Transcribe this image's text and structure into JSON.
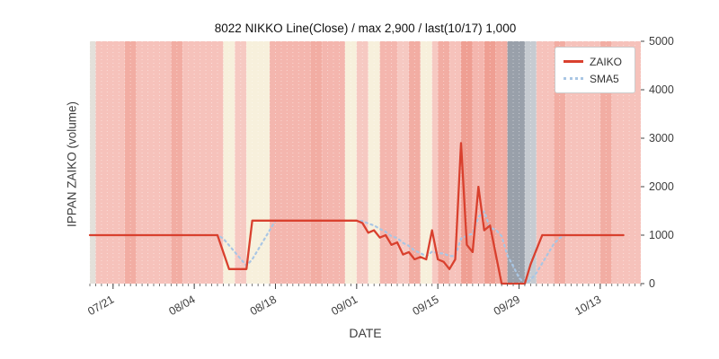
{
  "page": {
    "background": "#ffffff"
  },
  "chart_data": {
    "type": "line",
    "title": "8022 NIKKO Line(Close) / max 2,900 / last(10/17) 1,000",
    "xlabel": "DATE",
    "ylabel": "IPPAN ZAIKO (volume)",
    "ylim": [
      0,
      5000
    ],
    "yticks": [
      0,
      1000,
      2000,
      3000,
      4000,
      5000
    ],
    "x_domain_days": 95,
    "xticks": [
      {
        "d": 4,
        "label": "07/21"
      },
      {
        "d": 18,
        "label": "08/04"
      },
      {
        "d": 32,
        "label": "08/18"
      },
      {
        "d": 46,
        "label": "09/01"
      },
      {
        "d": 60,
        "label": "09/15"
      },
      {
        "d": 74,
        "label": "09/29"
      },
      {
        "d": 88,
        "label": "10/13"
      }
    ],
    "legend": {
      "position": "top-right",
      "entries": [
        {
          "label": "ZAIKO",
          "color": "#d9402e",
          "style": "solid"
        },
        {
          "label": "SMA5",
          "color": "#a9c6e4",
          "style": "dotted"
        }
      ]
    },
    "series": [
      {
        "name": "ZAIKO",
        "color": "#d9402e",
        "style": "solid",
        "points": [
          [
            0,
            1000
          ],
          [
            22,
            1000
          ],
          [
            24,
            300
          ],
          [
            27,
            300
          ],
          [
            28,
            1300
          ],
          [
            46,
            1300
          ],
          [
            47,
            1250
          ],
          [
            48,
            1050
          ],
          [
            49,
            1100
          ],
          [
            50,
            950
          ],
          [
            51,
            1000
          ],
          [
            52,
            800
          ],
          [
            53,
            850
          ],
          [
            54,
            600
          ],
          [
            55,
            650
          ],
          [
            56,
            500
          ],
          [
            57,
            550
          ],
          [
            58,
            500
          ],
          [
            59,
            1100
          ],
          [
            60,
            500
          ],
          [
            61,
            450
          ],
          [
            62,
            300
          ],
          [
            63,
            500
          ],
          [
            64,
            2900
          ],
          [
            65,
            800
          ],
          [
            66,
            650
          ],
          [
            67,
            2000
          ],
          [
            68,
            1100
          ],
          [
            69,
            1200
          ],
          [
            70,
            600
          ],
          [
            71,
            0
          ],
          [
            75,
            0
          ],
          [
            76,
            400
          ],
          [
            78,
            1000
          ],
          [
            92,
            1000
          ]
        ]
      },
      {
        "name": "SMA5",
        "color": "#a9c6e4",
        "style": "dotted",
        "derived": "sma5_of_ZAIKO"
      }
    ],
    "bands": [
      {
        "s": 0,
        "e": 1,
        "c": "#e3e0da"
      },
      {
        "s": 1,
        "e": 6,
        "c": "#f6c2bb"
      },
      {
        "s": 6,
        "e": 8,
        "c": "#f2ada3"
      },
      {
        "s": 8,
        "e": 14,
        "c": "#f6c2bb"
      },
      {
        "s": 14,
        "e": 16,
        "c": "#f2ada3"
      },
      {
        "s": 16,
        "e": 23,
        "c": "#f6c2bb"
      },
      {
        "s": 23,
        "e": 25,
        "c": "#f7f0dc"
      },
      {
        "s": 25,
        "e": 27,
        "c": "#f6c9c2"
      },
      {
        "s": 27,
        "e": 31,
        "c": "#f7f0dc"
      },
      {
        "s": 31,
        "e": 38,
        "c": "#f4b6ae"
      },
      {
        "s": 38,
        "e": 40,
        "c": "#f2ada3"
      },
      {
        "s": 40,
        "e": 44,
        "c": "#f4b6ae"
      },
      {
        "s": 44,
        "e": 46,
        "c": "#f7f0dc"
      },
      {
        "s": 46,
        "e": 48,
        "c": "#f6c9c2"
      },
      {
        "s": 48,
        "e": 50,
        "c": "#f7f0dc"
      },
      {
        "s": 50,
        "e": 53,
        "c": "#f4b6ae"
      },
      {
        "s": 53,
        "e": 55,
        "c": "#f6c9c2"
      },
      {
        "s": 55,
        "e": 57,
        "c": "#f2ada3"
      },
      {
        "s": 57,
        "e": 59,
        "c": "#f7f0dc"
      },
      {
        "s": 59,
        "e": 60,
        "c": "#f6c9c2"
      },
      {
        "s": 60,
        "e": 62,
        "c": "#f2ada3"
      },
      {
        "s": 62,
        "e": 64,
        "c": "#f6c2bb"
      },
      {
        "s": 64,
        "e": 66,
        "c": "#ef9f93"
      },
      {
        "s": 66,
        "e": 68,
        "c": "#f4b6ae"
      },
      {
        "s": 68,
        "e": 70,
        "c": "#ef9f93"
      },
      {
        "s": 70,
        "e": 72,
        "c": "#f2ada3"
      },
      {
        "s": 72,
        "e": 75,
        "c": "#99a0aa"
      },
      {
        "s": 75,
        "e": 77,
        "c": "#c6cbd1"
      },
      {
        "s": 77,
        "e": 80,
        "c": "#f6c2bb"
      },
      {
        "s": 80,
        "e": 82,
        "c": "#f2ada3"
      },
      {
        "s": 82,
        "e": 88,
        "c": "#f6c2bb"
      },
      {
        "s": 88,
        "e": 90,
        "c": "#f2ada3"
      },
      {
        "s": 90,
        "e": 95,
        "c": "#f6c2bb"
      }
    ]
  }
}
